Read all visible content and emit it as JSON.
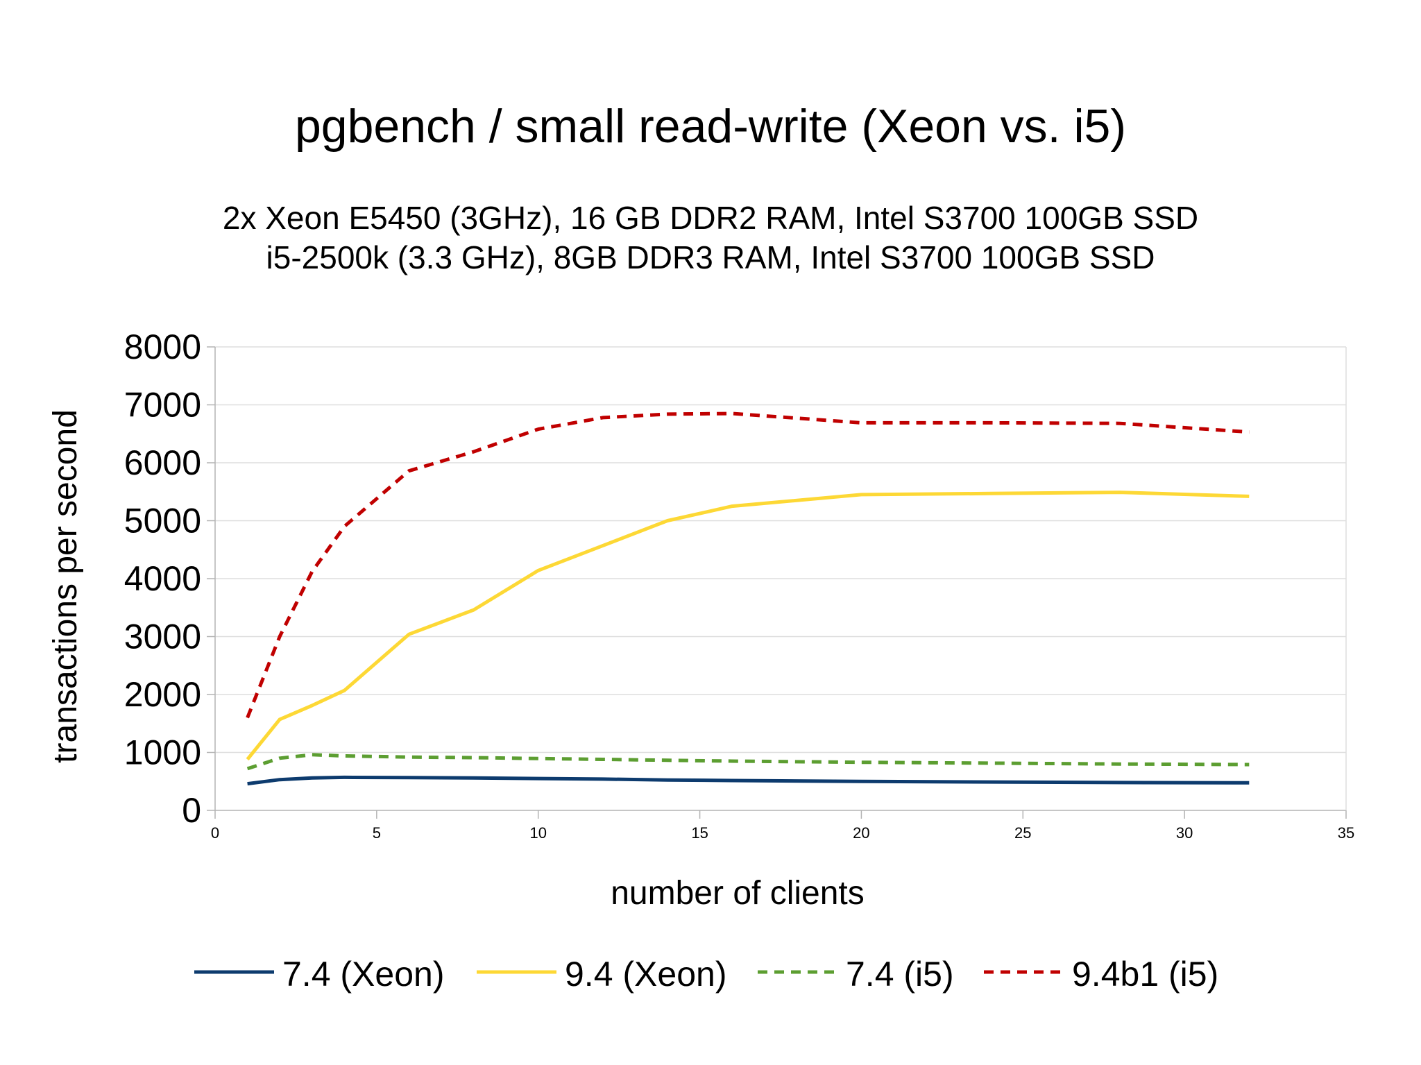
{
  "chart_data": {
    "type": "line",
    "title": "pgbench / small read-write (Xeon vs. i5)",
    "subtitle_lines": [
      "2x Xeon E5450 (3GHz), 16 GB DDR2 RAM, Intel S3700 100GB SSD",
      "i5-2500k (3.3 GHz), 8GB DDR3 RAM, Intel S3700 100GB SSD"
    ],
    "xlabel": "number of clients",
    "ylabel": "transactions per second",
    "xlim": [
      0,
      35
    ],
    "ylim": [
      0,
      8000
    ],
    "xticks": [
      "0",
      "5",
      "10",
      "15",
      "20",
      "25",
      "30",
      "35"
    ],
    "yticks": [
      "0",
      "1000",
      "2000",
      "3000",
      "4000",
      "5000",
      "6000",
      "7000",
      "8000"
    ],
    "grid": "horizontal",
    "legend_position": "bottom",
    "x": [
      1,
      2,
      3,
      4,
      6,
      8,
      10,
      12,
      14,
      16,
      20,
      24,
      28,
      32
    ],
    "series": [
      {
        "name": "7.4 (Xeon)",
        "color": "#0d3b6e",
        "style": "solid",
        "values": [
          460,
          530,
          560,
          570,
          565,
          560,
          550,
          540,
          525,
          515,
          500,
          490,
          480,
          475
        ]
      },
      {
        "name": "9.4 (Xeon)",
        "color": "#fdd835",
        "style": "solid",
        "values": [
          880,
          1570,
          1810,
          2070,
          3040,
          3460,
          4140,
          4570,
          5000,
          5250,
          5450,
          5470,
          5490,
          5420
        ]
      },
      {
        "name": "7.4 (i5)",
        "color": "#5c9e31",
        "style": "dashed",
        "values": [
          720,
          900,
          960,
          940,
          920,
          910,
          895,
          880,
          865,
          850,
          830,
          815,
          800,
          790
        ]
      },
      {
        "name": "9.4b1 (i5)",
        "color": "#c00000",
        "style": "dashed",
        "values": [
          1600,
          3000,
          4120,
          4900,
          5860,
          6190,
          6580,
          6780,
          6840,
          6850,
          6690,
          6690,
          6680,
          6530
        ]
      }
    ]
  }
}
